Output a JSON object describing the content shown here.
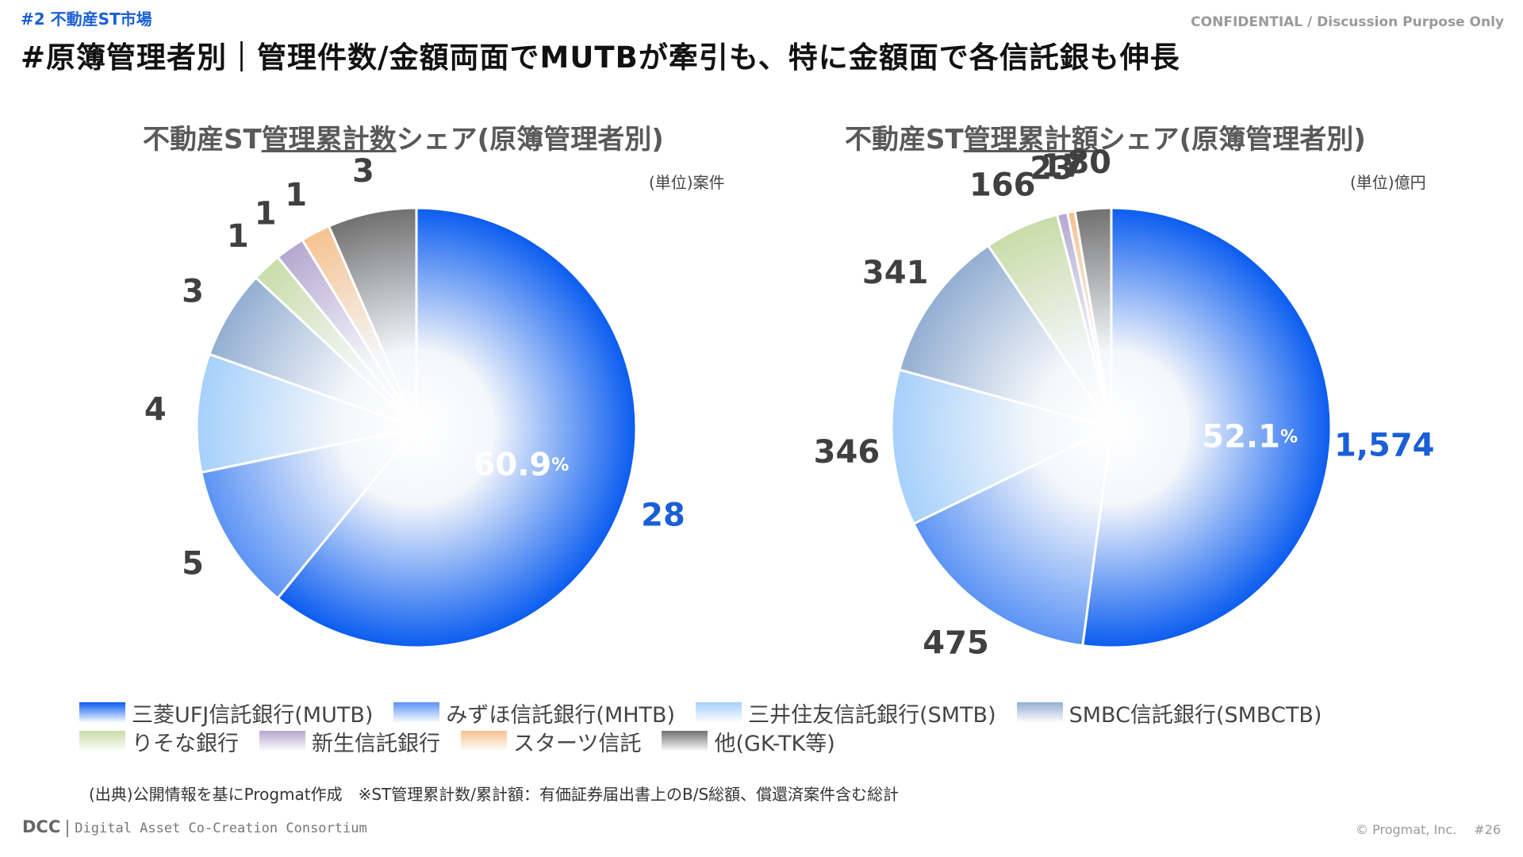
{
  "header": {
    "section_tag": "#2 不動産ST市場",
    "confidential": "CONFIDENTIAL / Discussion Purpose Only",
    "title": "#原簿管理者別｜管理件数/金額両面でMUTBが牽引も、特に金額面で各信託銀も伸長"
  },
  "legend": [
    {
      "label": "三菱UFJ信託銀行(MUTB)",
      "color": "#0a5cf0"
    },
    {
      "label": "みずほ信託銀行(MHTB)",
      "color": "#5b93f5"
    },
    {
      "label": "三井住友信託銀行(SMTB)",
      "color": "#a6d0fb"
    },
    {
      "label": "SMBC信託銀行(SMBCTB)",
      "color": "#93aed2"
    },
    {
      "label": "りそな銀行",
      "color": "#c9dca8"
    },
    {
      "label": "新生信託銀行",
      "color": "#b5a7cf"
    },
    {
      "label": "スターツ信託",
      "color": "#f6c28f"
    },
    {
      "label": "他(GK-TK等)",
      "color": "#707070"
    }
  ],
  "source_note": "(出典)公開情報を基にProgmat作成　※ST管理累計数/累計額：有価証券届出書上のB/S総額、償還済案件含む総計",
  "footer": {
    "logo_text": "DCC",
    "logo_sub": "Digital Asset Co-Creation Consortium",
    "copyright": "© Progmat, Inc.",
    "page": "#26"
  },
  "chart_data": [
    {
      "type": "pie",
      "title_pre": "不動産ST",
      "title_ul": "管理累計数",
      "title_post": "シェア(原簿管理者別)",
      "unit": "(単位)案件",
      "categories": [
        "三菱UFJ信託銀行(MUTB)",
        "みずほ信託銀行(MHTB)",
        "三井住友信託銀行(SMTB)",
        "SMBC信託銀行(SMBCTB)",
        "りそな銀行",
        "新生信託銀行",
        "スターツ信託",
        "他(GK-TK等)"
      ],
      "values": [
        28,
        5,
        4,
        3,
        1,
        1,
        1,
        3
      ],
      "value_labels": [
        "28",
        "5",
        "4",
        "3",
        "1",
        "1",
        "1",
        "3"
      ],
      "highlight_percent": "60.9",
      "percent_unit": "%"
    },
    {
      "type": "pie",
      "title_pre": "不動産ST",
      "title_ul": "管理累計額",
      "title_post": "シェア(原簿管理者別)",
      "unit": "(単位)億円",
      "categories": [
        "三菱UFJ信託銀行(MUTB)",
        "みずほ信託銀行(MHTB)",
        "三井住友信託銀行(SMTB)",
        "SMBC信託銀行(SMBCTB)",
        "りそな銀行",
        "新生信託銀行",
        "スターツ信託",
        "他(GK-TK等)"
      ],
      "values": [
        1574,
        475,
        346,
        341,
        166,
        23,
        17,
        80
      ],
      "value_labels": [
        "1,574",
        "475",
        "346",
        "341",
        "166",
        "23",
        "17",
        "80"
      ],
      "highlight_percent": "52.1",
      "percent_unit": "%"
    }
  ]
}
